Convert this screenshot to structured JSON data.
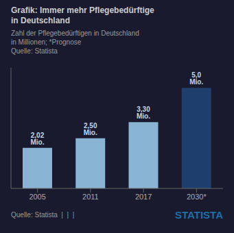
{
  "chart_data": {
    "type": "bar",
    "title": "Grafik: Immer mehr Pflegebedürftige\nin Deutschland",
    "subtitle": "Zahl der Pflegebedürftigen in Deutschland\nin Millionen; *Prognose\nQuelle: Statista",
    "annotations": [
      "Quelle: Statista  |  |  |",
      "STATISTA"
    ],
    "categories": [
      "2005",
      "2011",
      "2017",
      "2030*"
    ],
    "values": [
      2.02,
      2.5,
      3.3,
      5.0
    ],
    "value_labels": [
      "2,02 Mio.",
      "2,50 Mio.",
      "3,30 Mio.",
      "5,0 Mio."
    ],
    "data_labels": true,
    "colors": [
      "#8ab4d4",
      "#8ab4d4",
      "#8ab4d4",
      "#1e3f6e"
    ],
    "ylim": [
      0,
      6.0
    ],
    "grid": false,
    "tick_labels": "x"
  }
}
